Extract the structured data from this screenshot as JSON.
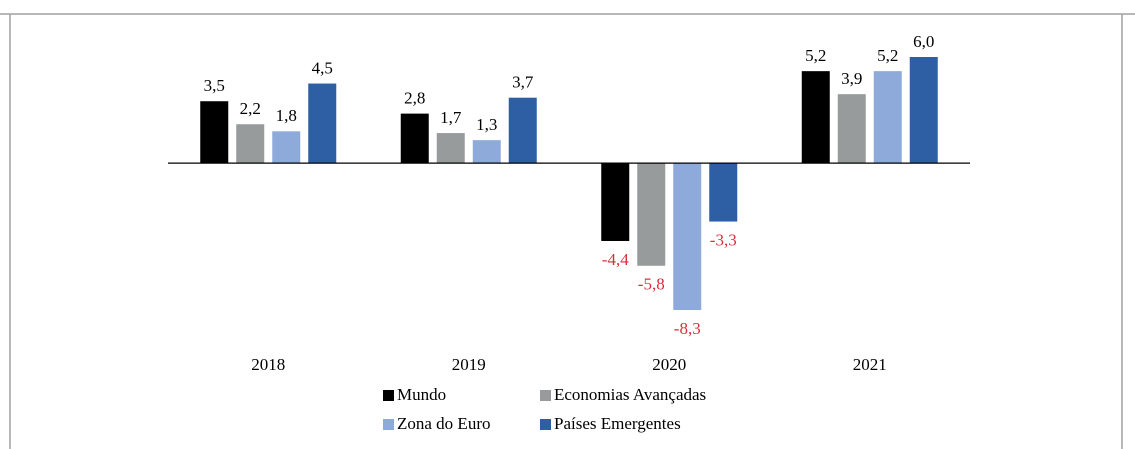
{
  "chart_data": {
    "type": "bar",
    "categories": [
      "2018",
      "2019",
      "2020",
      "2021"
    ],
    "series": [
      {
        "name": "Mundo",
        "color": "#000000",
        "values": [
          3.5,
          2.8,
          -4.4,
          5.2
        ],
        "value_labels": [
          "3,5",
          "2,8",
          "-4,4",
          "5,2"
        ]
      },
      {
        "name": "Economias Avançadas",
        "color": "#979b9b",
        "values": [
          2.2,
          1.7,
          -5.8,
          3.9
        ],
        "value_labels": [
          "2,2",
          "1,7",
          "-5,8",
          "3,9"
        ]
      },
      {
        "name": "Zona do Euro",
        "color": "#8eaadb",
        "values": [
          1.8,
          1.3,
          -8.3,
          5.2
        ],
        "value_labels": [
          "1,8",
          "1,3",
          "-8,3",
          "5,2"
        ]
      },
      {
        "name": "Países Emergentes",
        "color": "#2e5ea3",
        "values": [
          4.5,
          3.7,
          -3.3,
          6.0
        ],
        "value_labels": [
          "4,5",
          "3,7",
          "-3,3",
          "6,0"
        ]
      }
    ],
    "negative_label_color": "#d6303a",
    "legend": "bottom"
  }
}
